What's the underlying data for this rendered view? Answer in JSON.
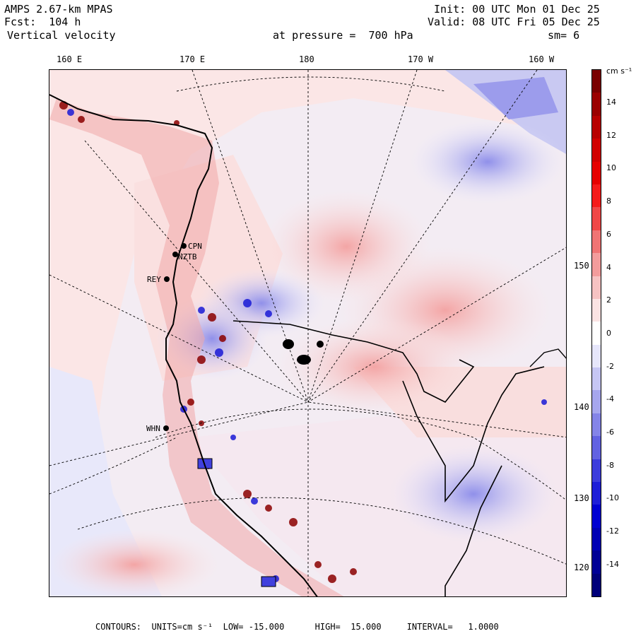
{
  "header": {
    "model": "AMPS 2.67-km MPAS",
    "forecast": "Fcst:  104 h",
    "field": "Vertical velocity",
    "init": "Init: 00 UTC Mon 01 Dec 25",
    "valid": "Valid: 08 UTC Fri 05 Dec 25",
    "level": "at pressure =  700 hPa",
    "smoothing": "sm= 6"
  },
  "lon_labels": [
    "160 E",
    "170 E",
    "180",
    "170 W",
    "160 W"
  ],
  "lat_labels": [
    "150 W",
    "140 W",
    "130 W",
    "120 W"
  ],
  "stations": [
    "CPN",
    "NZTB",
    "REY",
    "WHN"
  ],
  "colorbar": {
    "units": "cm s⁻¹",
    "labels": [
      "14",
      "12",
      "10",
      "8",
      "6",
      "4",
      "2",
      "0",
      "-2",
      "-4",
      "-6",
      "-8",
      "-10",
      "-12",
      "-14"
    ],
    "colors": [
      "#7a0000",
      "#9b0000",
      "#b80000",
      "#d10000",
      "#e60000",
      "#f51a1a",
      "#f04747",
      "#f07474",
      "#f39c9c",
      "#f6c2c2",
      "#fbe3e3",
      "#ffffff",
      "#e6e6fb",
      "#c6c6f4",
      "#a6a6ee",
      "#8484e8",
      "#6262e2",
      "#3c3cdc",
      "#1e1ed8",
      "#0000d2",
      "#0000b4",
      "#000096",
      "#00007a"
    ]
  },
  "footer": "CONTOURS:  UNITS=cm s⁻¹  LOW= -15.000      HIGH=  15.000     INTERVAL=   1.0000"
}
